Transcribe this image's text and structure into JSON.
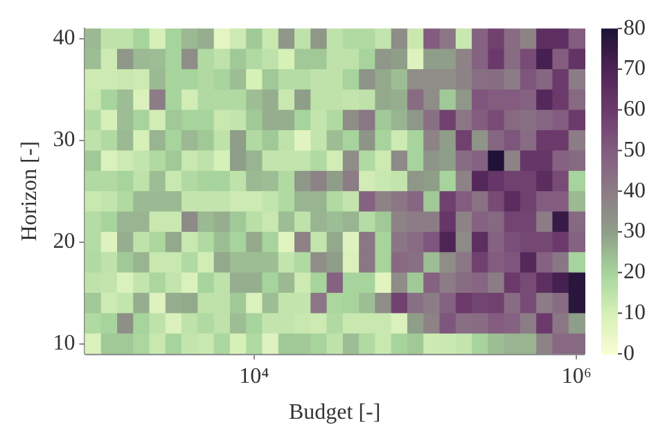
{
  "chart_data": {
    "type": "heatmap",
    "xlabel": "Budget [-]",
    "ylabel": "Horizon [-]",
    "x": [
      1000,
      1259,
      1585,
      1995,
      2512,
      3162,
      3981,
      5012,
      6310,
      7943,
      10000,
      12589,
      15849,
      19953,
      25119,
      31623,
      39811,
      50119,
      63096,
      79433,
      100000,
      125893,
      158489,
      199526,
      251189,
      316228,
      398107,
      501187,
      630957,
      794328,
      1000000
    ],
    "y": [
      40,
      38,
      36,
      34,
      32,
      30,
      28,
      26,
      24,
      22,
      20,
      18,
      16,
      14,
      12,
      10
    ],
    "log": "x",
    "xlim": [
      891,
      1122018
    ],
    "xticks": [
      {
        "value": 10000,
        "label": "10⁴"
      },
      {
        "value": 1000000,
        "label": "10⁶"
      }
    ],
    "ylim": [
      9,
      41
    ],
    "yticks": [
      10,
      20,
      30,
      40
    ],
    "clim": [
      0,
      80
    ],
    "cticks": [
      0,
      10,
      20,
      30,
      40,
      50,
      60,
      70,
      80
    ],
    "cells": [
      [
        25,
        15,
        15,
        20,
        10,
        20,
        25,
        27,
        6,
        12,
        22,
        13,
        32,
        15,
        32,
        15,
        18,
        18,
        14,
        35,
        13,
        50,
        42,
        13,
        48,
        58,
        45,
        38,
        65,
        65,
        50
      ],
      [
        24,
        12,
        32,
        25,
        24,
        20,
        35,
        18,
        15,
        22,
        18,
        15,
        10,
        22,
        22,
        15,
        15,
        20,
        32,
        30,
        8,
        30,
        30,
        38,
        48,
        60,
        45,
        55,
        72,
        50,
        63
      ],
      [
        12,
        12,
        13,
        12,
        25,
        20,
        20,
        18,
        20,
        24,
        10,
        22,
        17,
        17,
        15,
        15,
        20,
        33,
        28,
        24,
        35,
        35,
        35,
        38,
        44,
        45,
        40,
        52,
        47,
        60,
        40
      ],
      [
        13,
        20,
        24,
        9,
        40,
        20,
        11,
        18,
        18,
        18,
        24,
        27,
        13,
        30,
        15,
        15,
        14,
        15,
        28,
        27,
        45,
        35,
        22,
        32,
        52,
        50,
        50,
        48,
        68,
        60,
        46
      ],
      [
        18,
        10,
        24,
        20,
        11,
        22,
        20,
        20,
        13,
        14,
        22,
        27,
        27,
        20,
        14,
        18,
        35,
        42,
        22,
        26,
        32,
        44,
        58,
        42,
        50,
        55,
        46,
        44,
        47,
        50,
        60
      ],
      [
        15,
        18,
        25,
        10,
        26,
        20,
        25,
        22,
        15,
        30,
        18,
        22,
        15,
        7,
        14,
        24,
        20,
        33,
        20,
        12,
        20,
        38,
        30,
        58,
        33,
        47,
        52,
        45,
        60,
        60,
        40
      ],
      [
        22,
        9,
        12,
        14,
        18,
        22,
        13,
        15,
        10,
        30,
        26,
        14,
        14,
        14,
        18,
        11,
        35,
        18,
        12,
        36,
        20,
        33,
        30,
        45,
        48,
        80,
        38,
        62,
        62,
        48,
        46
      ],
      [
        18,
        18,
        20,
        15,
        24,
        13,
        18,
        20,
        20,
        15,
        25,
        24,
        18,
        32,
        38,
        30,
        40,
        11,
        13,
        14,
        32,
        30,
        20,
        38,
        68,
        62,
        58,
        58,
        66,
        55,
        20
      ],
      [
        13,
        14,
        18,
        25,
        25,
        25,
        14,
        14,
        14,
        12,
        12,
        14,
        18,
        26,
        26,
        18,
        14,
        48,
        38,
        42,
        47,
        22,
        58,
        50,
        43,
        55,
        66,
        58,
        50,
        50,
        25
      ],
      [
        17,
        20,
        26,
        26,
        13,
        13,
        36,
        25,
        27,
        22,
        16,
        13,
        24,
        15,
        26,
        24,
        26,
        17,
        22,
        38,
        40,
        40,
        62,
        38,
        48,
        46,
        57,
        57,
        40,
        75,
        46
      ],
      [
        17,
        8,
        27,
        15,
        19,
        28,
        13,
        18,
        24,
        20,
        28,
        20,
        7,
        38,
        14,
        28,
        8,
        42,
        20,
        42,
        45,
        52,
        70,
        36,
        65,
        48,
        54,
        56,
        56,
        60,
        48
      ],
      [
        18,
        15,
        22,
        26,
        13,
        13,
        18,
        11,
        28,
        24,
        24,
        24,
        14,
        18,
        35,
        30,
        9,
        42,
        20,
        46,
        44,
        24,
        35,
        42,
        58,
        50,
        52,
        68,
        48,
        42,
        20
      ],
      [
        15,
        14,
        9,
        14,
        19,
        14,
        9,
        20,
        15,
        27,
        27,
        20,
        25,
        12,
        20,
        48,
        20,
        20,
        7,
        35,
        22,
        48,
        40,
        45,
        47,
        40,
        60,
        55,
        65,
        72,
        78
      ],
      [
        22,
        12,
        14,
        27,
        8,
        27,
        28,
        15,
        15,
        22,
        9,
        24,
        14,
        14,
        42,
        19,
        20,
        24,
        35,
        58,
        44,
        40,
        48,
        60,
        57,
        58,
        45,
        55,
        40,
        45,
        78
      ],
      [
        18,
        20,
        34,
        20,
        15,
        9,
        15,
        18,
        15,
        24,
        20,
        14,
        14,
        13,
        12,
        18,
        13,
        13,
        13,
        9,
        30,
        38,
        52,
        44,
        45,
        50,
        48,
        40,
        60,
        42,
        30
      ],
      [
        9,
        22,
        22,
        19,
        13,
        20,
        14,
        13,
        19,
        10,
        18,
        8,
        22,
        22,
        20,
        15,
        24,
        18,
        13,
        20,
        22,
        12,
        13,
        14,
        20,
        24,
        26,
        26,
        38,
        46,
        46
      ]
    ]
  }
}
